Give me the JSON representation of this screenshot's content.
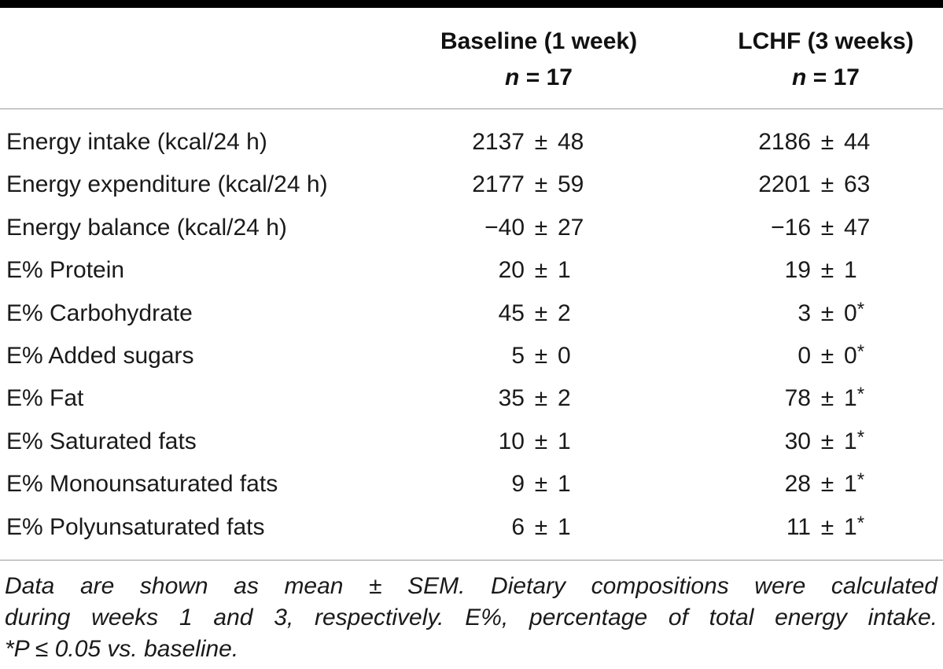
{
  "table": {
    "columns": [
      {
        "title": "Baseline (1 week)",
        "n_label": "n",
        "n_value": "= 17"
      },
      {
        "title": "LCHF (3 weeks)",
        "n_label": "n",
        "n_value": "= 17"
      }
    ],
    "rows": [
      {
        "label": "Energy intake (kcal/24 h)",
        "baseline": {
          "mean": "2137",
          "pm": "±",
          "sem": "48",
          "mark": ""
        },
        "lchf": {
          "mean": "2186",
          "pm": "±",
          "sem": "44",
          "mark": ""
        }
      },
      {
        "label": "Energy expenditure (kcal/24 h)",
        "baseline": {
          "mean": "2177",
          "pm": "±",
          "sem": "59",
          "mark": ""
        },
        "lchf": {
          "mean": "2201",
          "pm": "±",
          "sem": "63",
          "mark": ""
        }
      },
      {
        "label": "Energy balance (kcal/24 h)",
        "baseline": {
          "mean": "−40",
          "pm": "±",
          "sem": "27",
          "mark": ""
        },
        "lchf": {
          "mean": "−16",
          "pm": "±",
          "sem": "47",
          "mark": ""
        }
      },
      {
        "label": "E% Protein",
        "baseline": {
          "mean": "20",
          "pm": "±",
          "sem": "1",
          "mark": ""
        },
        "lchf": {
          "mean": "19",
          "pm": "±",
          "sem": "1",
          "mark": ""
        }
      },
      {
        "label": "E% Carbohydrate",
        "baseline": {
          "mean": "45",
          "pm": "±",
          "sem": "2",
          "mark": ""
        },
        "lchf": {
          "mean": "3",
          "pm": "±",
          "sem": "0",
          "mark": "*"
        }
      },
      {
        "label": "E% Added sugars",
        "baseline": {
          "mean": "5",
          "pm": "±",
          "sem": "0",
          "mark": ""
        },
        "lchf": {
          "mean": "0",
          "pm": "±",
          "sem": "0",
          "mark": "*"
        }
      },
      {
        "label": "E% Fat",
        "baseline": {
          "mean": "35",
          "pm": "±",
          "sem": "2",
          "mark": ""
        },
        "lchf": {
          "mean": "78",
          "pm": "±",
          "sem": "1",
          "mark": "*"
        }
      },
      {
        "label": "E% Saturated fats",
        "baseline": {
          "mean": "10",
          "pm": "±",
          "sem": "1",
          "mark": ""
        },
        "lchf": {
          "mean": "30",
          "pm": "±",
          "sem": "1",
          "mark": "*"
        }
      },
      {
        "label": "E% Monounsaturated fats",
        "baseline": {
          "mean": "9",
          "pm": "±",
          "sem": "1",
          "mark": ""
        },
        "lchf": {
          "mean": "28",
          "pm": "±",
          "sem": "1",
          "mark": "*"
        }
      },
      {
        "label": "E% Polyunsaturated fats",
        "baseline": {
          "mean": "6",
          "pm": "±",
          "sem": "1",
          "mark": ""
        },
        "lchf": {
          "mean": "11",
          "pm": "±",
          "sem": "1",
          "mark": "*"
        }
      }
    ]
  },
  "footnote": {
    "lines": [
      "Data are shown as mean ± SEM. Dietary compositions were calculated",
      "during weeks 1 and 3, respectively. E%, percentage of total energy intake.",
      "*P ≤ 0.05 vs. baseline."
    ]
  }
}
